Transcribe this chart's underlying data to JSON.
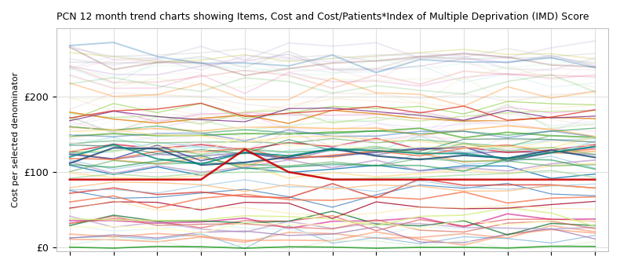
{
  "title": "PCN 12 month trend charts showing Items, Cost and Cost/Patients*Index of Multiple Deprivation (IMD) Score",
  "ylabel": "Cost per selected denominator",
  "yticks": [
    0,
    100,
    200
  ],
  "ytick_labels": [
    "£0",
    "£100",
    "£200"
  ],
  "ylim": [
    -5,
    290
  ],
  "n_months": 13,
  "background_color": "#ffffff",
  "grid_color": "#dddddd",
  "n_lines_opaque": 50,
  "n_lines_transparent": 30,
  "seed": 42,
  "opaque_colors": [
    "#2166ac",
    "#4dac26",
    "#d01c8b",
    "#f1b6da",
    "#b8e186",
    "#e08214",
    "#fdb863",
    "#8073ac",
    "#92c5de",
    "#f4a582",
    "#ca0020",
    "#0571b0",
    "#a6d96a",
    "#d7191c",
    "#fdae61",
    "#1a9641",
    "#74add1",
    "#abd9e9",
    "#e0f3f8",
    "#fee090",
    "#d73027",
    "#fc8d59",
    "#91bfdb",
    "#4575b4",
    "#313695",
    "#762a83",
    "#9970ab",
    "#c2a5cf",
    "#a6dba0",
    "#5aae61",
    "#1b7837",
    "#d9f0d3",
    "#7fbf7b",
    "#af8dc3",
    "#e7d4e8",
    "#f5f5f5",
    "#d6604d",
    "#f46d43",
    "#fee08b",
    "#ffffbf",
    "#d9ef8b",
    "#66bd63",
    "#1a9850",
    "#006837",
    "#a50026",
    "#d73027",
    "#f46d43",
    "#fdae61",
    "#fee08b",
    "#ffffbf"
  ],
  "transparent_colors": [
    "#aec7e8",
    "#ffbb78",
    "#98df8a",
    "#ff9896",
    "#c5b0d5",
    "#c49c94",
    "#f7b6d2",
    "#dbdb8d",
    "#9edae5",
    "#17becf",
    "#bcbd22",
    "#7f7f7f",
    "#e377c2",
    "#8c564b",
    "#9467bd",
    "#d62728",
    "#ff7f0e",
    "#2ca02c",
    "#1f77b4",
    "#aaaaaa",
    "#bbccdd",
    "#eeccbb",
    "#ddbbee",
    "#bbddee",
    "#eeddbb",
    "#ccbbdd",
    "#ddeebb",
    "#bbeecc",
    "#eebccc",
    "#ccddee"
  ]
}
